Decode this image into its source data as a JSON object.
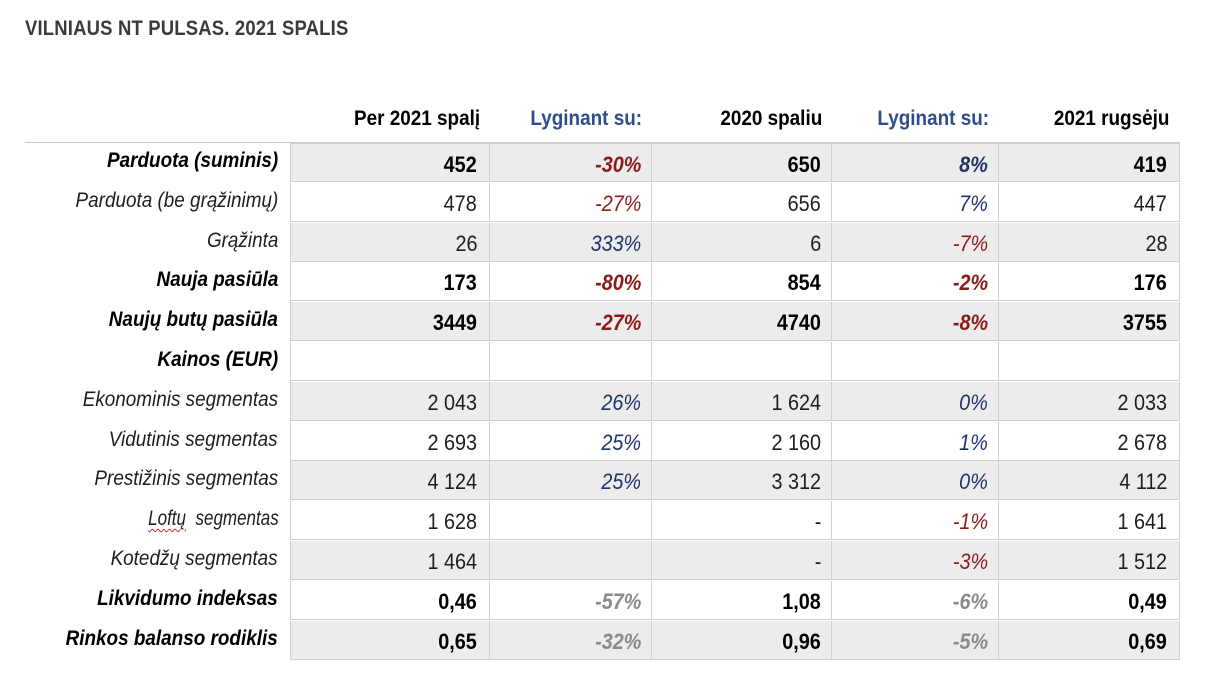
{
  "title": "VILNIAUS NT PULSAS. 2021 SPALIS",
  "headers": {
    "col1": "Per 2021 spalį",
    "col2": "Lyginant su:",
    "col3": "2020 spaliu",
    "col4": "Lyginant su:",
    "col5": "2021 rugsėju"
  },
  "rows": [
    {
      "label": "Parduota (suminis)",
      "v1": "452",
      "p1": "-30%",
      "v2": "650",
      "p2": "8%",
      "v3": "419"
    },
    {
      "label": "Parduota (be grąžinimų)",
      "v1": "478",
      "p1": "-27%",
      "v2": "656",
      "p2": "7%",
      "v3": "447"
    },
    {
      "label": "Grąžinta",
      "v1": "26",
      "p1": "333%",
      "v2": "6",
      "p2": "-7%",
      "v3": "28"
    },
    {
      "label": "Nauja pasiūla",
      "v1": "173",
      "p1": "-80%",
      "v2": "854",
      "p2": "-2%",
      "v3": "176"
    },
    {
      "label": "Naujų butų pasiūla",
      "v1": "3449",
      "p1": "-27%",
      "v2": "4740",
      "p2": "-8%",
      "v3": "3755"
    },
    {
      "label": "Kainos (EUR)",
      "v1": "",
      "p1": "",
      "v2": "",
      "p2": "",
      "v3": ""
    },
    {
      "label": "Ekonominis segmentas",
      "v1": "2 043",
      "p1": "26%",
      "v2": "1 624",
      "p2": "0%",
      "v3": "2 033"
    },
    {
      "label": "Vidutinis segmentas",
      "v1": "2 693",
      "p1": "25%",
      "v2": "2 160",
      "p2": "1%",
      "v3": "2 678"
    },
    {
      "label": "Prestižinis segmentas",
      "v1": "4 124",
      "p1": "25%",
      "v2": "3 312",
      "p2": "0%",
      "v3": "4 112"
    },
    {
      "label": "Loftų segmentas",
      "v1": "1 628",
      "p1": "",
      "v2": "-",
      "p2": "-1%",
      "v3": "1 641"
    },
    {
      "label": "Kotedžų segmentas",
      "v1": "1 464",
      "p1": "",
      "v2": "-",
      "p2": "-3%",
      "v3": "1 512"
    },
    {
      "label": "Likvidumo indeksas",
      "v1": "0,46",
      "p1": "-57%",
      "v2": "1,08",
      "p2": "-6%",
      "v3": "0,49"
    },
    {
      "label": "Rinkos balanso rodiklis",
      "v1": "0,65",
      "p1": "-32%",
      "v2": "0,96",
      "p2": "-5%",
      "v3": "0,69"
    }
  ],
  "colors": {
    "negative": "#8b1a1a",
    "positive": "#1f3366",
    "neutral": "#888888",
    "header_blue": "#2e4d8c",
    "row_shade": "#ececec"
  }
}
